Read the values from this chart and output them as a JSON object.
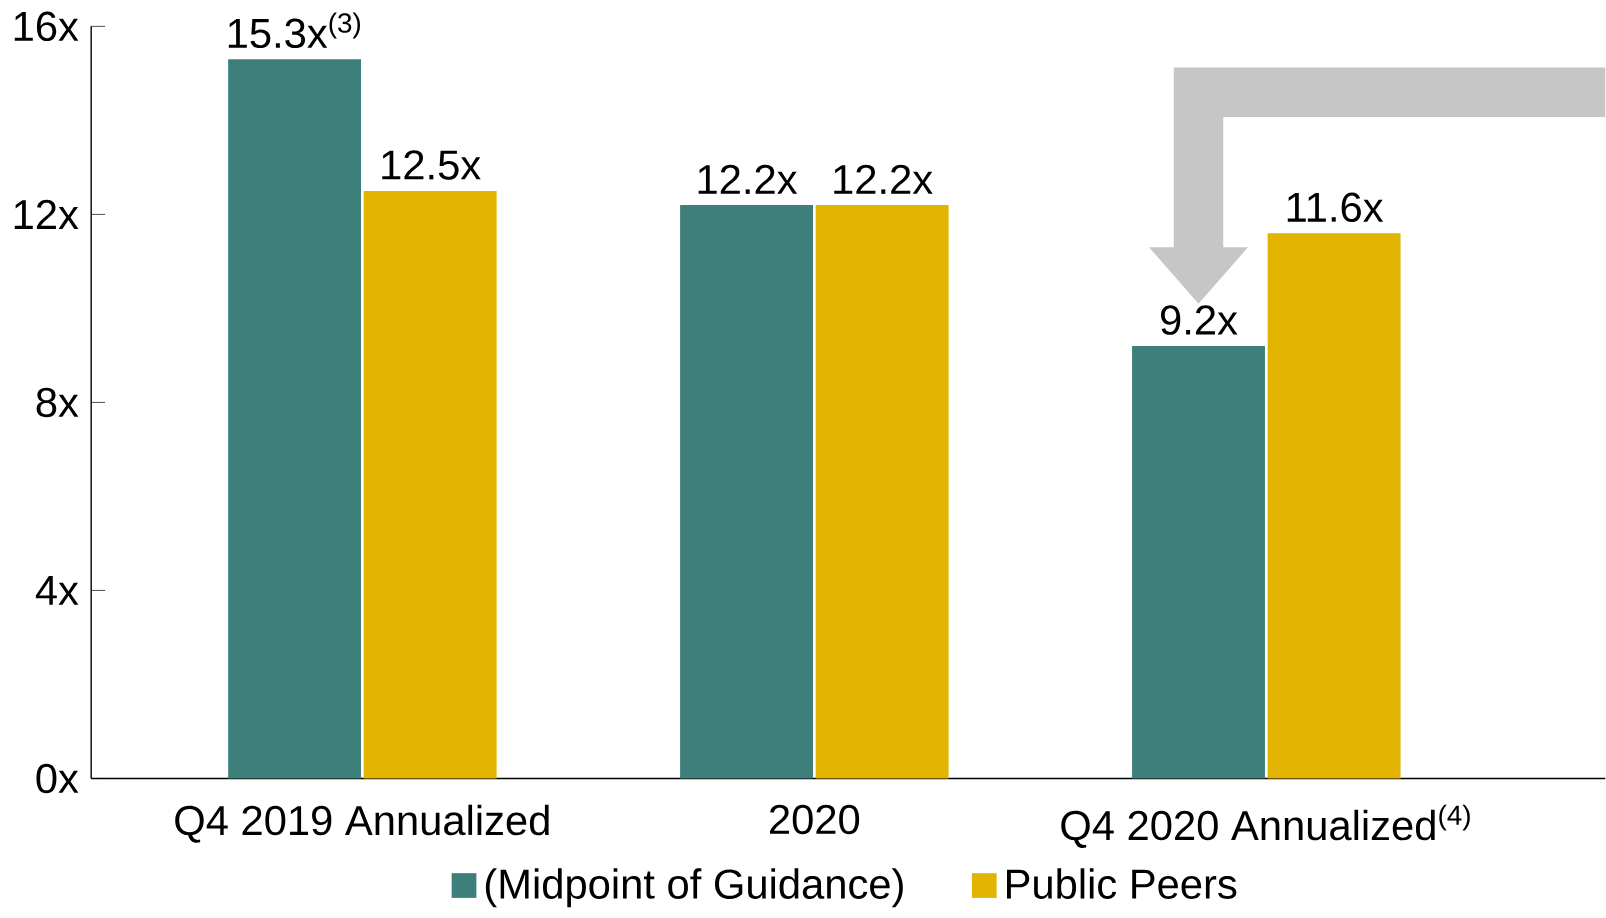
{
  "chart_data": {
    "type": "bar",
    "categories": [
      "Q4 2019 Annualized",
      "2020",
      "Q4 2020 Annualized$^{(4)}$"
    ],
    "series": [
      {
        "name": "(Midpoint of Guidance)",
        "color": "#3f7f7b",
        "values": [
          15.3,
          12.2,
          9.2
        ],
        "value_labels": [
          "15.3x$^{(3)}$",
          "12.2x",
          "9.2x"
        ]
      },
      {
        "name": "Public Peers",
        "color": "#e0b400",
        "values": [
          12.5,
          12.2,
          11.6
        ],
        "value_labels": [
          "12.5x",
          "12.2x",
          "11.6x"
        ]
      }
    ],
    "ylim": [
      0,
      16
    ],
    "yticks": [
      {
        "value": 0,
        "label": "0x"
      },
      {
        "value": 4,
        "label": "4x"
      },
      {
        "value": 8,
        "label": "8x"
      },
      {
        "value": 12,
        "label": "12x"
      },
      {
        "value": 16,
        "label": "16x"
      }
    ],
    "legend": "bottom",
    "grid": false
  }
}
